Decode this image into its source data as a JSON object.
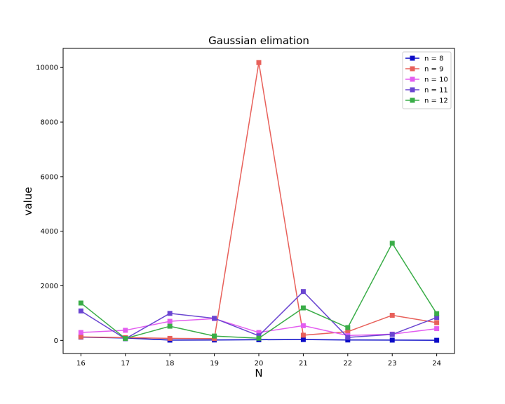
{
  "chart_data": {
    "type": "line",
    "title": "Gaussian elimation",
    "xlabel": "N",
    "ylabel": "value",
    "x": [
      16,
      17,
      18,
      19,
      20,
      21,
      22,
      23,
      24
    ],
    "xlim": [
      15.6,
      24.4
    ],
    "ylim": [
      -480,
      10700
    ],
    "yticks": [
      0,
      2000,
      4000,
      6000,
      8000,
      10000
    ],
    "grid": false,
    "legend_position": "top-right",
    "series": [
      {
        "name": "n = 8",
        "color": "#0b0bc7",
        "values": [
          120,
          90,
          10,
          15,
          25,
          30,
          15,
          10,
          5
        ]
      },
      {
        "name": "n = 9",
        "color": "#e8605a",
        "values": [
          130,
          100,
          75,
          65,
          10180,
          190,
          320,
          920,
          650
        ]
      },
      {
        "name": "n = 10",
        "color": "#e35df0",
        "values": [
          290,
          370,
          700,
          800,
          290,
          540,
          180,
          230,
          430
        ]
      },
      {
        "name": "n = 11",
        "color": "#6a45d1",
        "values": [
          1080,
          60,
          990,
          810,
          170,
          1790,
          110,
          220,
          840
        ]
      },
      {
        "name": "n = 12",
        "color": "#3aad48",
        "values": [
          1370,
          70,
          520,
          160,
          80,
          1190,
          470,
          3560,
          980
        ]
      }
    ]
  }
}
